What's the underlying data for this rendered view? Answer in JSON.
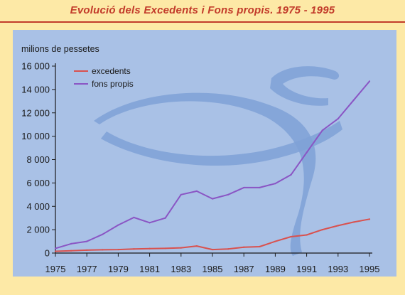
{
  "title": "Evolució dels Excedents i Fons propis. 1975 - 1995",
  "colors": {
    "background": "#fde9a6",
    "plot_background": "#a9c1e6",
    "title": "#c23b2a",
    "excedents": "#d9514e",
    "fons_propis": "#8a55c4"
  },
  "chart_data": {
    "type": "line",
    "ylabel": "milions de pessetes",
    "xlabel": "",
    "ylim": [
      0,
      16000
    ],
    "xlim": [
      1975,
      1995
    ],
    "y_ticks": [
      "0",
      "2 000",
      "4 000",
      "6 000",
      "8 000",
      "10 000",
      "12 000",
      "14 000",
      "16 000"
    ],
    "y_tick_values": [
      0,
      2000,
      4000,
      6000,
      8000,
      10000,
      12000,
      14000,
      16000
    ],
    "x_ticks": [
      "1975",
      "1977",
      "1979",
      "1981",
      "1983",
      "1985",
      "1987",
      "1989",
      "1991",
      "1993",
      "1995"
    ],
    "x_tick_values": [
      1975,
      1977,
      1979,
      1981,
      1983,
      1985,
      1987,
      1989,
      1991,
      1993,
      1995
    ],
    "legend_position": "top-left",
    "grid": false,
    "x": [
      1975,
      1976,
      1977,
      1978,
      1979,
      1980,
      1981,
      1982,
      1983,
      1984,
      1985,
      1986,
      1987,
      1988,
      1989,
      1990,
      1991,
      1992,
      1993,
      1994,
      1995
    ],
    "series": [
      {
        "name": "excedents",
        "color": "#d9514e",
        "values": [
          150,
          200,
          250,
          280,
          300,
          350,
          380,
          400,
          450,
          600,
          300,
          350,
          500,
          550,
          1000,
          1400,
          1550,
          2000,
          2350,
          2650,
          2900
        ]
      },
      {
        "name": "fons propis",
        "color": "#8a55c4",
        "values": [
          400,
          800,
          1000,
          1600,
          2400,
          3050,
          2600,
          3000,
          5000,
          5300,
          4650,
          5000,
          5600,
          5600,
          5950,
          6700,
          8600,
          10500,
          11500,
          13100,
          14700
        ]
      }
    ]
  }
}
